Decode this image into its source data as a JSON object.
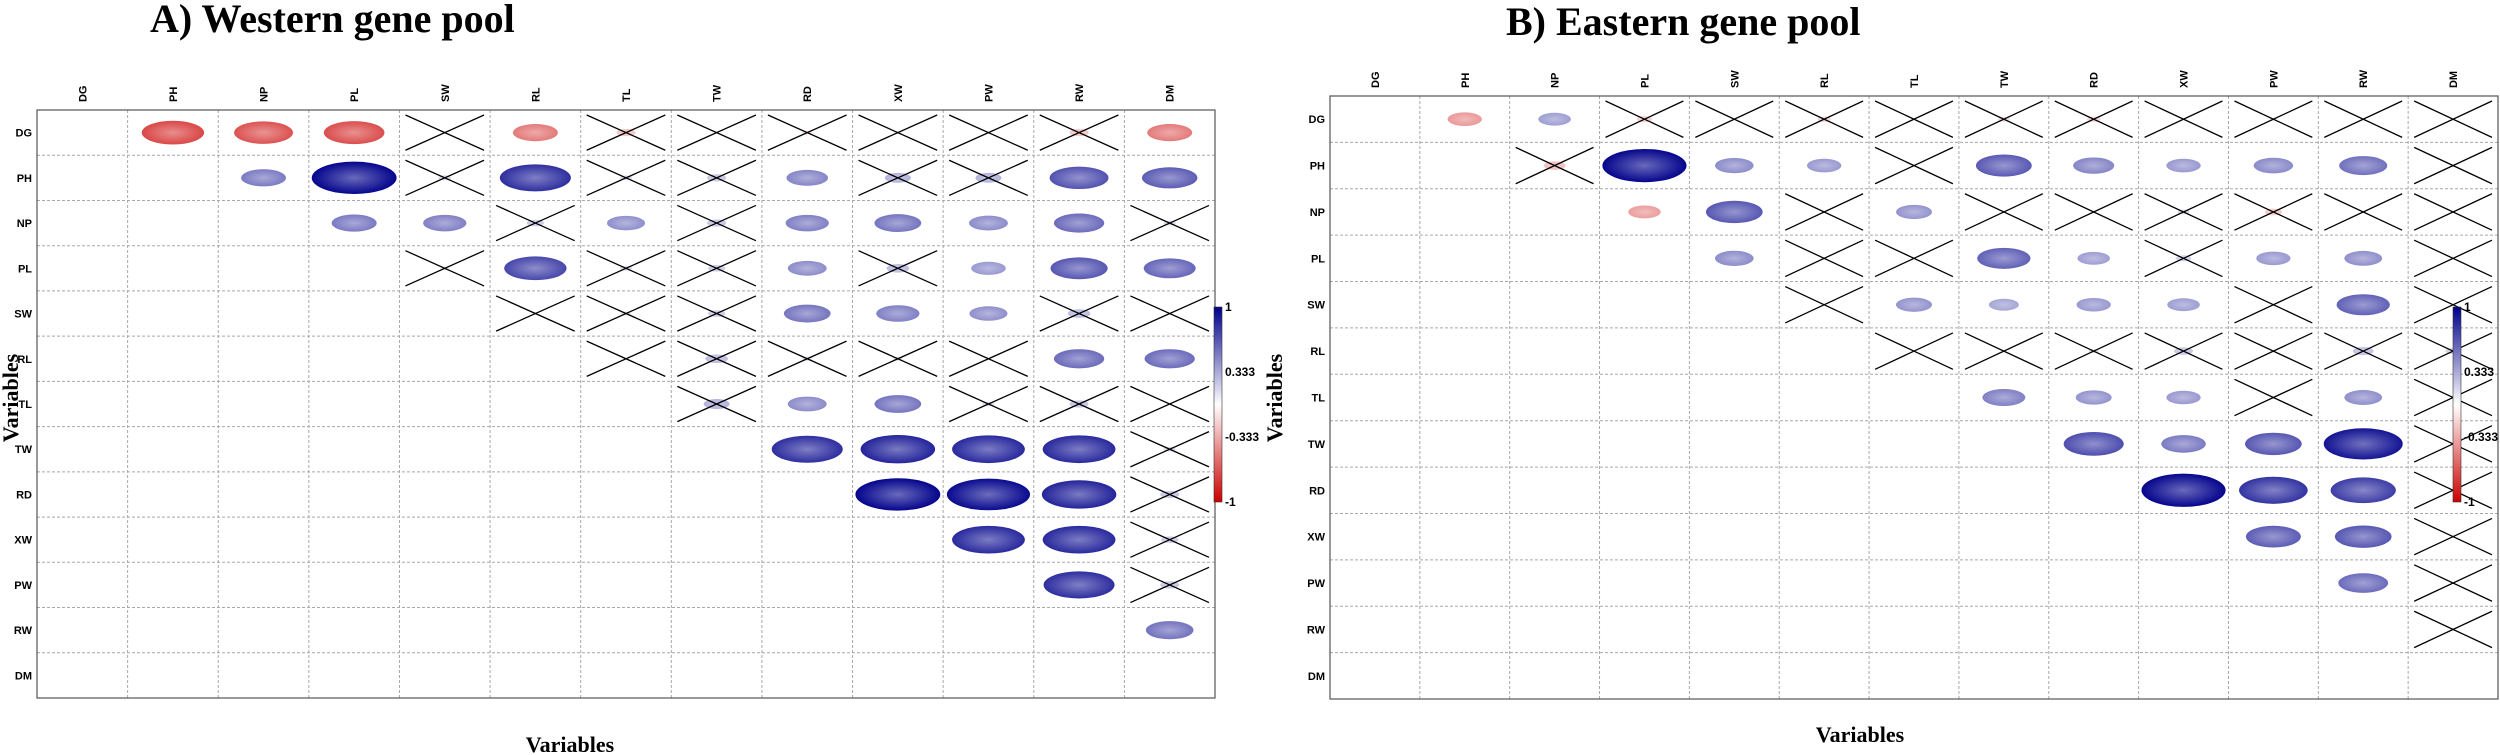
{
  "colors": {
    "positive": "#00008B",
    "negative": "#CC0000",
    "neutral": "#FFFFFF",
    "cross": "#000000"
  },
  "chart_data": [
    {
      "type": "heatmap",
      "title": "A) Western gene pool",
      "xlabel": "Variables",
      "ylabel": "Variables",
      "variables": [
        "DG",
        "PH",
        "NP",
        "PL",
        "SW",
        "RL",
        "TL",
        "TW",
        "RD",
        "XW",
        "PW",
        "RW",
        "DM"
      ],
      "colorbar": {
        "range": [
          -1,
          1
        ],
        "ticks": [
          "1",
          "0.333",
          "-0.333",
          "-1"
        ]
      },
      "cells": [
        [
          "DG",
          "PH",
          -0.72,
          false
        ],
        [
          "DG",
          "NP",
          -0.68,
          false
        ],
        [
          "DG",
          "PL",
          -0.7,
          false
        ],
        [
          "DG",
          "SW",
          0.0,
          true
        ],
        [
          "DG",
          "RL",
          -0.52,
          false
        ],
        [
          "DG",
          "TL",
          -0.22,
          true
        ],
        [
          "DG",
          "TW",
          0.0,
          true
        ],
        [
          "DG",
          "RD",
          -0.12,
          true
        ],
        [
          "DG",
          "XW",
          -0.1,
          true
        ],
        [
          "DG",
          "PW",
          0.0,
          true
        ],
        [
          "DG",
          "RW",
          -0.22,
          true
        ],
        [
          "DG",
          "DM",
          -0.52,
          false
        ],
        [
          "PH",
          "NP",
          0.52,
          false
        ],
        [
          "PH",
          "PL",
          0.98,
          false
        ],
        [
          "PH",
          "SW",
          0.15,
          true
        ],
        [
          "PH",
          "RL",
          0.82,
          false
        ],
        [
          "PH",
          "TL",
          0.14,
          true
        ],
        [
          "PH",
          "TW",
          0.22,
          true
        ],
        [
          "PH",
          "RD",
          0.48,
          false
        ],
        [
          "PH",
          "XW",
          0.3,
          true
        ],
        [
          "PH",
          "PW",
          0.3,
          true
        ],
        [
          "PH",
          "RW",
          0.68,
          false
        ],
        [
          "PH",
          "DM",
          0.64,
          false
        ],
        [
          "NP",
          "PL",
          0.52,
          false
        ],
        [
          "NP",
          "SW",
          0.5,
          false
        ],
        [
          "NP",
          "RL",
          0.2,
          true
        ],
        [
          "NP",
          "TL",
          0.44,
          false
        ],
        [
          "NP",
          "TW",
          0.22,
          true
        ],
        [
          "NP",
          "RD",
          0.5,
          false
        ],
        [
          "NP",
          "XW",
          0.54,
          false
        ],
        [
          "NP",
          "PW",
          0.45,
          false
        ],
        [
          "NP",
          "RW",
          0.58,
          false
        ],
        [
          "NP",
          "DM",
          0.14,
          true
        ],
        [
          "PL",
          "SW",
          0.1,
          true
        ],
        [
          "PL",
          "RL",
          0.72,
          false
        ],
        [
          "PL",
          "TL",
          0.14,
          true
        ],
        [
          "PL",
          "TW",
          0.2,
          true
        ],
        [
          "PL",
          "RD",
          0.45,
          false
        ],
        [
          "PL",
          "XW",
          0.26,
          true
        ],
        [
          "PL",
          "PW",
          0.4,
          false
        ],
        [
          "PL",
          "RW",
          0.66,
          false
        ],
        [
          "PL",
          "DM",
          0.6,
          false
        ],
        [
          "SW",
          "RL",
          0.0,
          true
        ],
        [
          "SW",
          "TL",
          0.12,
          true
        ],
        [
          "SW",
          "TW",
          0.2,
          true
        ],
        [
          "SW",
          "RD",
          0.54,
          false
        ],
        [
          "SW",
          "XW",
          0.5,
          false
        ],
        [
          "SW",
          "PW",
          0.44,
          false
        ],
        [
          "SW",
          "RW",
          0.26,
          true
        ],
        [
          "SW",
          "DM",
          0.0,
          true
        ],
        [
          "RL",
          "TL",
          0.0,
          true
        ],
        [
          "RL",
          "TW",
          0.26,
          true
        ],
        [
          "RL",
          "RD",
          0.12,
          true
        ],
        [
          "RL",
          "XW",
          0.12,
          true
        ],
        [
          "RL",
          "PW",
          0.0,
          true
        ],
        [
          "RL",
          "RW",
          0.58,
          false
        ],
        [
          "RL",
          "DM",
          0.58,
          false
        ],
        [
          "TL",
          "TW",
          0.3,
          true
        ],
        [
          "TL",
          "RD",
          0.45,
          false
        ],
        [
          "TL",
          "XW",
          0.54,
          false
        ],
        [
          "TL",
          "PW",
          0.14,
          true
        ],
        [
          "TL",
          "RW",
          0.22,
          true
        ],
        [
          "TL",
          "DM",
          0.0,
          true
        ],
        [
          "TW",
          "RD",
          0.82,
          false
        ],
        [
          "TW",
          "XW",
          0.86,
          false
        ],
        [
          "TW",
          "PW",
          0.84,
          false
        ],
        [
          "TW",
          "RW",
          0.84,
          false
        ],
        [
          "TW",
          "DM",
          0.14,
          true
        ],
        [
          "RD",
          "XW",
          0.98,
          false
        ],
        [
          "RD",
          "PW",
          0.96,
          false
        ],
        [
          "RD",
          "RW",
          0.86,
          false
        ],
        [
          "RD",
          "DM",
          0.22,
          true
        ],
        [
          "XW",
          "PW",
          0.84,
          false
        ],
        [
          "XW",
          "RW",
          0.84,
          false
        ],
        [
          "XW",
          "DM",
          0.2,
          true
        ],
        [
          "PW",
          "RW",
          0.82,
          false
        ],
        [
          "PW",
          "DM",
          0.22,
          true
        ],
        [
          "RW",
          "DM",
          0.55,
          false
        ]
      ]
    },
    {
      "type": "heatmap",
      "title": "B) Eastern gene pool",
      "xlabel": "Variables",
      "ylabel": "Variables",
      "variables": [
        "DG",
        "PH",
        "NP",
        "PL",
        "SW",
        "RL",
        "TL",
        "TW",
        "RD",
        "XW",
        "PW",
        "RW",
        "DM"
      ],
      "colorbar": {
        "range": [
          -1,
          1
        ],
        "ticks": [
          "1",
          "0.333",
          "-0.333",
          "-1"
        ]
      },
      "cells": [
        [
          "DG",
          "PH",
          -0.4,
          false
        ],
        [
          "DG",
          "NP",
          0.38,
          false
        ],
        [
          "DG",
          "PL",
          -0.18,
          true
        ],
        [
          "DG",
          "SW",
          0.0,
          true
        ],
        [
          "DG",
          "RL",
          -0.16,
          true
        ],
        [
          "DG",
          "TL",
          0.0,
          true
        ],
        [
          "DG",
          "TW",
          -0.14,
          true
        ],
        [
          "DG",
          "RD",
          -0.16,
          true
        ],
        [
          "DG",
          "XW",
          0.0,
          true
        ],
        [
          "DG",
          "PW",
          -0.1,
          true
        ],
        [
          "DG",
          "RW",
          0.0,
          true
        ],
        [
          "DG",
          "DM",
          0.0,
          true
        ],
        [
          "PH",
          "NP",
          -0.25,
          true
        ],
        [
          "PH",
          "PL",
          0.98,
          false
        ],
        [
          "PH",
          "SW",
          0.45,
          false
        ],
        [
          "PH",
          "RL",
          0.4,
          false
        ],
        [
          "PH",
          "TL",
          0.0,
          true
        ],
        [
          "PH",
          "TW",
          0.65,
          false
        ],
        [
          "PH",
          "RD",
          0.48,
          false
        ],
        [
          "PH",
          "XW",
          0.4,
          false
        ],
        [
          "PH",
          "PW",
          0.46,
          false
        ],
        [
          "PH",
          "RW",
          0.56,
          false
        ],
        [
          "PH",
          "DM",
          0.0,
          true
        ],
        [
          "NP",
          "PL",
          -0.38,
          false
        ],
        [
          "NP",
          "SW",
          0.66,
          false
        ],
        [
          "NP",
          "RL",
          0.0,
          true
        ],
        [
          "NP",
          "TL",
          0.42,
          false
        ],
        [
          "NP",
          "TW",
          0.0,
          true
        ],
        [
          "NP",
          "RD",
          0.0,
          true
        ],
        [
          "NP",
          "XW",
          0.14,
          true
        ],
        [
          "NP",
          "PW",
          -0.2,
          true
        ],
        [
          "NP",
          "RW",
          0.0,
          true
        ],
        [
          "NP",
          "DM",
          0.0,
          true
        ],
        [
          "PL",
          "SW",
          0.45,
          false
        ],
        [
          "PL",
          "RL",
          0.0,
          true
        ],
        [
          "PL",
          "TL",
          0.0,
          true
        ],
        [
          "PL",
          "TW",
          0.62,
          false
        ],
        [
          "PL",
          "RD",
          0.38,
          false
        ],
        [
          "PL",
          "XW",
          0.18,
          true
        ],
        [
          "PL",
          "PW",
          0.4,
          false
        ],
        [
          "PL",
          "RW",
          0.44,
          false
        ],
        [
          "PL",
          "DM",
          0.0,
          true
        ],
        [
          "SW",
          "RL",
          0.0,
          true
        ],
        [
          "SW",
          "TL",
          0.42,
          false
        ],
        [
          "SW",
          "TW",
          0.35,
          false
        ],
        [
          "SW",
          "RD",
          0.4,
          false
        ],
        [
          "SW",
          "XW",
          0.38,
          false
        ],
        [
          "SW",
          "PW",
          0.0,
          true
        ],
        [
          "SW",
          "RW",
          0.62,
          false
        ],
        [
          "SW",
          "DM",
          0.0,
          true
        ],
        [
          "RL",
          "TL",
          0.0,
          true
        ],
        [
          "RL",
          "TW",
          0.0,
          true
        ],
        [
          "RL",
          "RD",
          0.12,
          true
        ],
        [
          "RL",
          "XW",
          0.22,
          true
        ],
        [
          "RL",
          "PW",
          0.0,
          true
        ],
        [
          "RL",
          "RW",
          0.24,
          true
        ],
        [
          "RL",
          "DM",
          0.18,
          true
        ],
        [
          "TL",
          "TW",
          0.5,
          false
        ],
        [
          "TL",
          "RD",
          0.42,
          false
        ],
        [
          "TL",
          "XW",
          0.4,
          false
        ],
        [
          "TL",
          "PW",
          0.0,
          true
        ],
        [
          "TL",
          "RW",
          0.44,
          false
        ],
        [
          "TL",
          "DM",
          0.0,
          true
        ],
        [
          "TW",
          "RD",
          0.7,
          false
        ],
        [
          "TW",
          "XW",
          0.52,
          false
        ],
        [
          "TW",
          "PW",
          0.66,
          false
        ],
        [
          "TW",
          "RW",
          0.92,
          false
        ],
        [
          "TW",
          "DM",
          0.0,
          true
        ],
        [
          "RD",
          "XW",
          0.98,
          false
        ],
        [
          "RD",
          "PW",
          0.8,
          false
        ],
        [
          "RD",
          "RW",
          0.76,
          false
        ],
        [
          "RD",
          "DM",
          0.0,
          true
        ],
        [
          "XW",
          "PW",
          0.64,
          false
        ],
        [
          "XW",
          "RW",
          0.66,
          false
        ],
        [
          "XW",
          "DM",
          0.0,
          true
        ],
        [
          "PW",
          "RW",
          0.58,
          false
        ],
        [
          "PW",
          "DM",
          0.0,
          true
        ],
        [
          "RW",
          "DM",
          0.0,
          true
        ]
      ]
    }
  ]
}
